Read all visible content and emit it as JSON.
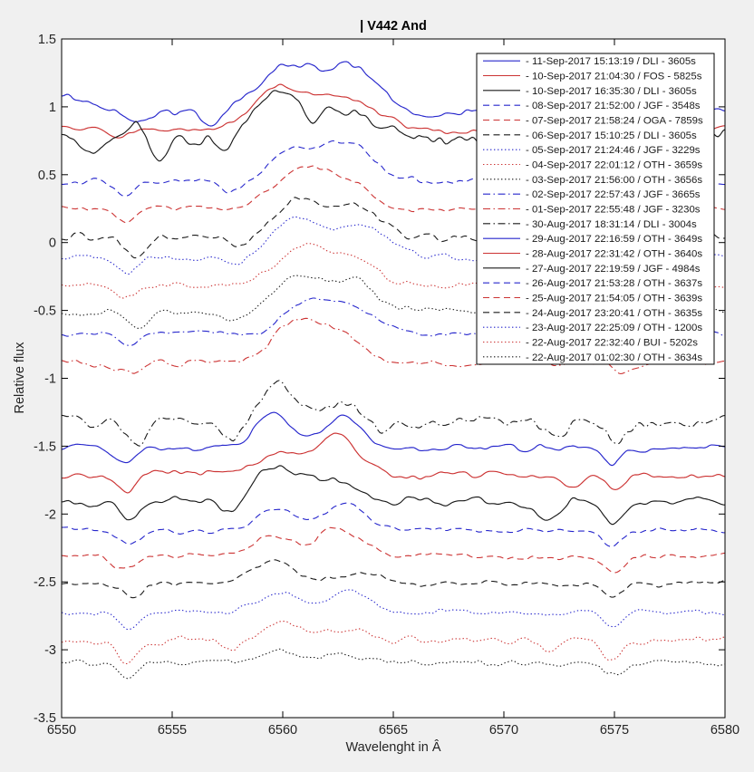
{
  "window": {
    "background": "#f0f0f0",
    "plot_background": "#ffffff",
    "axis_color": "#000000",
    "tick_label_color": "#252525"
  },
  "colors": {
    "blue": "#2626cc",
    "red": "#cc3333",
    "black": "#1a1a1a"
  },
  "chart_data": {
    "type": "line",
    "title": "| V442 And",
    "xlabel": "Wavelenght in Â",
    "ylabel": "Relative flux",
    "xlim": [
      6550,
      6580
    ],
    "ylim": [
      -3.5,
      1.5
    ],
    "xticks": [
      6550,
      6555,
      6560,
      6565,
      6570,
      6575,
      6580
    ],
    "ytick_labels": [
      "1.5",
      "1",
      "0.5",
      "0",
      "-0.5",
      "-1",
      "-1.5",
      "-2",
      "-2.5",
      "-3",
      "-3.5"
    ],
    "ytick_values": [
      1.5,
      1,
      0.5,
      0,
      -0.5,
      -1,
      -1.5,
      -2,
      -2.5,
      -3,
      -3.5
    ],
    "grid": false,
    "legend_position": "top-right",
    "description": "21 H-alpha spectra of V442 And, vertically offset; broad double-peaked emission near 6560-6563 A, telluric/absorption dips near 6553, 6557.5 and 6575 A",
    "series": [
      {
        "label": "- 11-Sep-2017 15:13:19 / DLI - 3605s",
        "color": "blue",
        "linestyle": "solid",
        "continuum": 0.97,
        "peaks": [
          {
            "c": 6549.6,
            "h": 0.1,
            "w": 1.5
          },
          {
            "c": 6560.0,
            "h": 0.3,
            "w": 1.1
          },
          {
            "c": 6562.9,
            "h": 0.33,
            "w": 1.4
          }
        ],
        "dips": [
          {
            "c": 6553.6,
            "d": 0.08
          },
          {
            "c": 6556.8,
            "d": 0.13
          },
          {
            "c": 6566.5,
            "d": 0.05
          },
          {
            "c": 6574.7,
            "d": 0.09
          }
        ],
        "noise": 0.028,
        "seed": 11
      },
      {
        "label": "- 10-Sep-2017 21:04:30 / FOS - 5825s",
        "color": "red",
        "linestyle": "solid",
        "continuum": 0.84,
        "peaks": [
          {
            "c": 6559.7,
            "h": 0.27,
            "w": 1.1
          },
          {
            "c": 6562.6,
            "h": 0.23,
            "w": 1.4
          }
        ],
        "dips": [
          {
            "c": 6552.7,
            "d": 0.07
          },
          {
            "c": 6568.0,
            "d": 0.04
          },
          {
            "c": 6574.9,
            "d": 0.08
          }
        ],
        "noise": 0.02,
        "seed": 22
      },
      {
        "label": "- 10-Sep-2017 16:35:30 / DLI - 3605s",
        "color": "black",
        "linestyle": "solid",
        "continuum": 0.77,
        "peaks": [
          {
            "c": 6553.5,
            "h": 0.12,
            "w": 0.3
          },
          {
            "c": 6559.5,
            "h": 0.31,
            "w": 0.9
          },
          {
            "c": 6562.2,
            "h": 0.22,
            "w": 1.5
          }
        ],
        "dips": [
          {
            "c": 6551.3,
            "d": 0.1
          },
          {
            "c": 6554.3,
            "d": 0.18
          },
          {
            "c": 6557.4,
            "d": 0.1
          },
          {
            "c": 6561.3,
            "d": 0.12,
            "w": 0.35
          },
          {
            "c": 6572.0,
            "d": 0.09
          },
          {
            "c": 6575.0,
            "d": 0.12
          }
        ],
        "noise": 0.05,
        "seed": 33
      },
      {
        "label": "- 08-Sep-2017 21:52:00 / JGF - 3548s",
        "color": "blue",
        "linestyle": "dashed",
        "continuum": 0.45,
        "peaks": [
          {
            "c": 6560.3,
            "h": 0.2,
            "w": 1.0
          },
          {
            "c": 6562.8,
            "h": 0.29,
            "w": 1.2
          }
        ],
        "dips": [
          {
            "c": 6552.9,
            "d": 0.1
          },
          {
            "c": 6557.6,
            "d": 0.06
          },
          {
            "c": 6574.8,
            "d": 0.06
          }
        ],
        "noise": 0.022,
        "seed": 44
      },
      {
        "label": "- 07-Sep-2017 21:58:24 / OGA - 7859s",
        "color": "red",
        "linestyle": "dashed",
        "continuum": 0.25,
        "peaks": [
          {
            "c": 6560.9,
            "h": 0.31,
            "w": 1.2
          },
          {
            "c": 6563.1,
            "h": 0.16,
            "w": 0.9
          }
        ],
        "dips": [
          {
            "c": 6552.8,
            "d": 0.09
          },
          {
            "c": 6574.6,
            "d": 0.06
          }
        ],
        "noise": 0.02,
        "seed": 55
      },
      {
        "label": "- 06-Sep-2017 15:10:25 / DLI - 3605s",
        "color": "black",
        "linestyle": "dashed",
        "continuum": 0.04,
        "peaks": [
          {
            "c": 6560.6,
            "h": 0.25,
            "w": 1.0
          },
          {
            "c": 6563.2,
            "h": 0.23,
            "w": 1.1
          }
        ],
        "dips": [
          {
            "c": 6553.3,
            "d": 0.13
          },
          {
            "c": 6557.9,
            "d": 0.08
          },
          {
            "c": 6574.8,
            "d": 0.07
          }
        ],
        "noise": 0.03,
        "seed": 66
      },
      {
        "label": "- 05-Sep-2017 21:24:46 / JGF - 3229s",
        "color": "blue",
        "linestyle": "dotted",
        "continuum": -0.11,
        "peaks": [
          {
            "c": 6560.6,
            "h": 0.27,
            "w": 1.1
          },
          {
            "c": 6563.5,
            "h": 0.23,
            "w": 1.2
          }
        ],
        "dips": [
          {
            "c": 6553.0,
            "d": 0.13
          },
          {
            "c": 6557.8,
            "d": 0.06
          },
          {
            "c": 6574.8,
            "d": 0.06
          }
        ],
        "noise": 0.02,
        "seed": 77
      },
      {
        "label": "- 04-Sep-2017 22:01:12 / OTH - 3659s",
        "color": "red",
        "linestyle": "dotted",
        "continuum": -0.31,
        "peaks": [
          {
            "c": 6561.0,
            "h": 0.28,
            "w": 1.2
          },
          {
            "c": 6563.4,
            "h": 0.17,
            "w": 0.9
          }
        ],
        "dips": [
          {
            "c": 6552.9,
            "d": 0.11
          },
          {
            "c": 6574.9,
            "d": 0.07
          }
        ],
        "noise": 0.02,
        "seed": 88
      },
      {
        "label": "- 03-Sep-2017 21:56:00 / OTH - 3656s",
        "color": "black",
        "linestyle": "dotted",
        "continuum": -0.51,
        "peaks": [
          {
            "c": 6560.7,
            "h": 0.27,
            "w": 1.1
          },
          {
            "c": 6563.2,
            "h": 0.22,
            "w": 1.0
          }
        ],
        "dips": [
          {
            "c": 6553.5,
            "d": 0.11
          },
          {
            "c": 6557.7,
            "d": 0.06
          },
          {
            "c": 6574.8,
            "d": 0.07
          }
        ],
        "noise": 0.026,
        "seed": 99
      },
      {
        "label": "- 02-Sep-2017 22:57:43 / JGF - 3665s",
        "color": "blue",
        "linestyle": "dashdot",
        "continuum": -0.67,
        "peaks": [
          {
            "c": 6561.0,
            "h": 0.23,
            "w": 0.95
          },
          {
            "c": 6563.1,
            "h": 0.21,
            "w": 0.95
          }
        ],
        "dips": [
          {
            "c": 6553.0,
            "d": 0.09
          },
          {
            "c": 6574.9,
            "d": 0.06
          }
        ],
        "noise": 0.02,
        "seed": 110
      },
      {
        "label": "- 01-Sep-2017 22:55:48 / JGF - 3230s",
        "color": "red",
        "linestyle": "dashdot",
        "continuum": -0.89,
        "peaks": [
          {
            "c": 6560.7,
            "h": 0.31,
            "w": 1.15
          },
          {
            "c": 6562.9,
            "h": 0.18,
            "w": 0.85
          }
        ],
        "dips": [
          {
            "c": 6553.1,
            "d": 0.09
          },
          {
            "c": 6575.4,
            "d": 0.1
          }
        ],
        "noise": 0.026,
        "seed": 121
      },
      {
        "label": "- 30-Aug-2017 18:31:14 / DLI - 3004s",
        "color": "black",
        "linestyle": "dashdot",
        "continuum": -1.32,
        "peaks": [
          {
            "c": 6559.9,
            "h": 0.25,
            "w": 0.85
          },
          {
            "c": 6562.7,
            "h": 0.13,
            "w": 0.8
          }
        ],
        "dips": [
          {
            "c": 6553.3,
            "d": 0.17
          },
          {
            "c": 6557.6,
            "d": 0.12
          },
          {
            "c": 6564.6,
            "d": 0.12
          },
          {
            "c": 6572.6,
            "d": 0.12
          },
          {
            "c": 6575.1,
            "d": 0.13
          }
        ],
        "noise": 0.05,
        "seed": 132
      },
      {
        "label": "- 29-Aug-2017 22:16:59 / OTH - 3649s",
        "color": "blue",
        "linestyle": "solid",
        "continuum": -1.51,
        "peaks": [
          {
            "c": 6559.6,
            "h": 0.23,
            "w": 0.85
          },
          {
            "c": 6562.7,
            "h": 0.21,
            "w": 0.9
          }
        ],
        "dips": [
          {
            "c": 6552.9,
            "d": 0.11
          },
          {
            "c": 6574.9,
            "d": 0.13
          }
        ],
        "noise": 0.026,
        "seed": 143
      },
      {
        "label": "- 28-Aug-2017 22:31:42 / OTH - 3640s",
        "color": "red",
        "linestyle": "solid",
        "continuum": -1.71,
        "peaks": [
          {
            "c": 6559.8,
            "h": 0.17,
            "w": 0.85
          },
          {
            "c": 6562.5,
            "h": 0.28,
            "w": 0.95
          }
        ],
        "dips": [
          {
            "c": 6553.0,
            "d": 0.11
          },
          {
            "c": 6573.1,
            "d": 0.08
          },
          {
            "c": 6575.1,
            "d": 0.11
          }
        ],
        "noise": 0.025,
        "seed": 154
      },
      {
        "label": "- 27-Aug-2017 22:19:59 / JGF - 4984s",
        "color": "black",
        "linestyle": "solid",
        "continuum": -1.91,
        "peaks": [
          {
            "c": 6559.9,
            "h": 0.27,
            "w": 1.05
          },
          {
            "c": 6562.8,
            "h": 0.15,
            "w": 0.95
          }
        ],
        "dips": [
          {
            "c": 6553.0,
            "d": 0.14
          },
          {
            "c": 6557.6,
            "d": 0.09
          },
          {
            "c": 6571.9,
            "d": 0.1
          },
          {
            "c": 6574.9,
            "d": 0.13
          }
        ],
        "noise": 0.032,
        "seed": 165
      },
      {
        "label": "- 26-Aug-2017 21:53:28 / OTH - 3637s",
        "color": "blue",
        "linestyle": "dashed",
        "continuum": -2.12,
        "peaks": [
          {
            "c": 6559.7,
            "h": 0.17,
            "w": 0.85
          },
          {
            "c": 6562.9,
            "h": 0.19,
            "w": 0.9
          }
        ],
        "dips": [
          {
            "c": 6553.1,
            "d": 0.09
          },
          {
            "c": 6574.9,
            "d": 0.11
          }
        ],
        "noise": 0.02,
        "seed": 176
      },
      {
        "label": "- 25-Aug-2017 21:54:05 / OTH - 3639s",
        "color": "red",
        "linestyle": "dashed",
        "continuum": -2.31,
        "peaks": [
          {
            "c": 6559.5,
            "h": 0.14,
            "w": 0.8
          },
          {
            "c": 6562.5,
            "h": 0.21,
            "w": 0.95
          }
        ],
        "dips": [
          {
            "c": 6552.9,
            "d": 0.11
          },
          {
            "c": 6575.0,
            "d": 0.13
          }
        ],
        "noise": 0.021,
        "seed": 187
      },
      {
        "label": "- 24-Aug-2017 23:20:41 / OTH - 3635s",
        "color": "black",
        "linestyle": "dashed",
        "continuum": -2.51,
        "peaks": [
          {
            "c": 6559.7,
            "h": 0.17,
            "w": 0.9
          },
          {
            "c": 6563.4,
            "h": 0.08,
            "w": 0.8
          }
        ],
        "dips": [
          {
            "c": 6553.3,
            "d": 0.11
          },
          {
            "c": 6574.9,
            "d": 0.11
          }
        ],
        "noise": 0.021,
        "seed": 198
      },
      {
        "label": "- 23-Aug-2017 22:25:09 / OTH - 1200s",
        "color": "blue",
        "linestyle": "dotted",
        "continuum": -2.72,
        "peaks": [
          {
            "c": 6559.9,
            "h": 0.15,
            "w": 0.9
          },
          {
            "c": 6563.0,
            "h": 0.15,
            "w": 0.9
          }
        ],
        "dips": [
          {
            "c": 6553.0,
            "d": 0.13
          },
          {
            "c": 6575.0,
            "d": 0.11
          }
        ],
        "noise": 0.02,
        "seed": 209
      },
      {
        "label": "- 22-Aug-2017 22:32:40 / BUI - 5202s",
        "color": "red",
        "linestyle": "dotted",
        "continuum": -2.93,
        "peaks": [
          {
            "c": 6560.1,
            "h": 0.14,
            "w": 0.9
          },
          {
            "c": 6562.9,
            "h": 0.09,
            "w": 0.8
          }
        ],
        "dips": [
          {
            "c": 6552.9,
            "d": 0.16
          },
          {
            "c": 6557.7,
            "d": 0.06
          },
          {
            "c": 6572.0,
            "d": 0.08
          },
          {
            "c": 6574.9,
            "d": 0.13
          }
        ],
        "noise": 0.026,
        "seed": 220
      },
      {
        "label": "- 22-Aug-2017 01:02:30 / OTH - 3634s",
        "color": "black",
        "linestyle": "dotted",
        "continuum": -3.1,
        "peaks": [
          {
            "c": 6559.8,
            "h": 0.11,
            "w": 0.9
          },
          {
            "c": 6562.6,
            "h": 0.07,
            "w": 0.9
          }
        ],
        "dips": [
          {
            "c": 6553.0,
            "d": 0.11
          },
          {
            "c": 6574.9,
            "d": 0.09
          }
        ],
        "noise": 0.022,
        "seed": 231
      }
    ]
  }
}
